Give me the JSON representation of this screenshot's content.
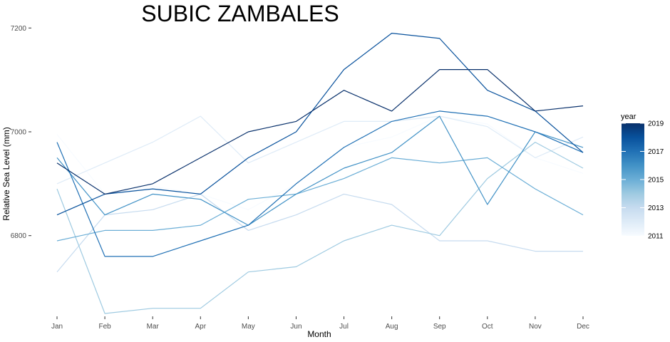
{
  "chart_data": {
    "type": "line",
    "title": "SUBIC ZAMBALES",
    "xlabel": "Month",
    "ylabel": "Relative Sea Level (mm)",
    "categories": [
      "Jan",
      "Feb",
      "Mar",
      "Apr",
      "May",
      "Jun",
      "Jul",
      "Aug",
      "Sep",
      "Oct",
      "Nov",
      "Dec"
    ],
    "ylim": [
      6650,
      7210
    ],
    "yticks": [
      6800,
      7000,
      7200
    ],
    "ytick_labels": [
      "6800",
      "7000",
      "7200"
    ],
    "grid": false,
    "legend": {
      "title": "year",
      "position": "right",
      "type": "colorbar",
      "range": [
        2011,
        2019
      ],
      "ticks": [
        2011,
        2013,
        2015,
        2017,
        2019
      ],
      "colors": [
        "#f7fbff",
        "#08306b"
      ]
    },
    "series": [
      {
        "year": 2011,
        "values": [
          6995,
          6880,
          6895,
          6880,
          6850,
          6900,
          6970,
          6990,
          7030,
          7015,
          6950,
          6920
        ]
      },
      {
        "year": 2012,
        "values": [
          6900,
          6940,
          6980,
          7030,
          6940,
          6980,
          7020,
          7020,
          7030,
          7010,
          6950,
          6990
        ]
      },
      {
        "year": 2013,
        "values": [
          6730,
          6840,
          6850,
          6880,
          6810,
          6840,
          6880,
          6860,
          6790,
          6790,
          6770,
          6770
        ]
      },
      {
        "year": 2014,
        "values": [
          6890,
          6650,
          6660,
          6660,
          6730,
          6740,
          6790,
          6820,
          6800,
          6910,
          6980,
          6930
        ]
      },
      {
        "year": 2015,
        "values": [
          6790,
          6810,
          6810,
          6820,
          6870,
          6880,
          6910,
          6950,
          6940,
          6950,
          6890,
          6840
        ]
      },
      {
        "year": 2016,
        "values": [
          6950,
          6840,
          6880,
          6870,
          6820,
          6880,
          6930,
          6960,
          7030,
          6860,
          7000,
          6970
        ]
      },
      {
        "year": 2017,
        "values": [
          6980,
          6760,
          6760,
          6790,
          6820,
          6900,
          6970,
          7020,
          7040,
          7030,
          7000,
          6960
        ]
      },
      {
        "year": 2018,
        "values": [
          6840,
          6880,
          6890,
          6880,
          6950,
          7000,
          7120,
          7190,
          7180,
          7080,
          7040,
          6960
        ]
      },
      {
        "year": 2019,
        "values": [
          6940,
          6880,
          6900,
          6950,
          7000,
          7020,
          7080,
          7040,
          7120,
          7120,
          7040,
          7050
        ]
      }
    ]
  }
}
